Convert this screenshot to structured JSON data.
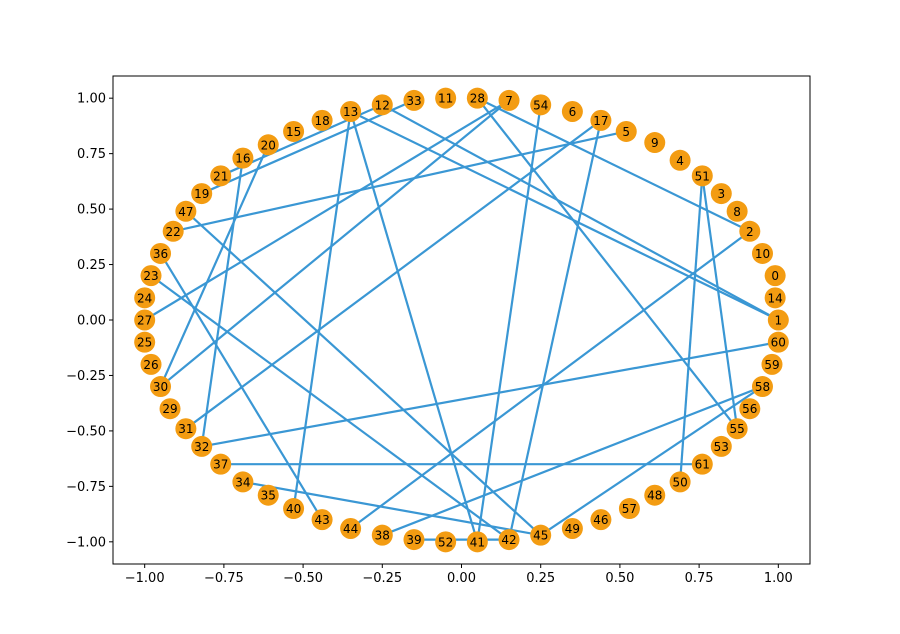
{
  "chart_data": {
    "type": "network",
    "xlim": [
      -1.1,
      1.1
    ],
    "ylim": [
      -1.1,
      1.1
    ],
    "x_ticks": [
      "−1.00",
      "−0.75",
      "−0.50",
      "−0.25",
      "0.00",
      "0.25",
      "0.50",
      "0.75",
      "1.00"
    ],
    "y_ticks": [
      "1.00",
      "0.75",
      "0.50",
      "0.25",
      "0.00",
      "−0.25",
      "−0.50",
      "−0.75",
      "−1.00"
    ],
    "grid": false,
    "node_color": "#f39c12",
    "edge_color": "#3a97d4",
    "nodes": [
      {
        "id": "0",
        "x": 0.99,
        "y": 0.2
      },
      {
        "id": "1",
        "x": 1.0,
        "y": 0.0
      },
      {
        "id": "2",
        "x": 0.91,
        "y": 0.4
      },
      {
        "id": "3",
        "x": 0.82,
        "y": 0.57
      },
      {
        "id": "4",
        "x": 0.69,
        "y": 0.72
      },
      {
        "id": "5",
        "x": 0.52,
        "y": 0.85
      },
      {
        "id": "6",
        "x": 0.35,
        "y": 0.94
      },
      {
        "id": "7",
        "x": 0.15,
        "y": 0.99
      },
      {
        "id": "8",
        "x": 0.87,
        "y": 0.49
      },
      {
        "id": "9",
        "x": 0.61,
        "y": 0.8
      },
      {
        "id": "10",
        "x": 0.95,
        "y": 0.3
      },
      {
        "id": "11",
        "x": -0.05,
        "y": 1.0
      },
      {
        "id": "12",
        "x": -0.25,
        "y": 0.97
      },
      {
        "id": "13",
        "x": -0.35,
        "y": 0.94
      },
      {
        "id": "14",
        "x": 0.99,
        "y": 0.1
      },
      {
        "id": "15",
        "x": -0.53,
        "y": 0.85
      },
      {
        "id": "16",
        "x": -0.69,
        "y": 0.73
      },
      {
        "id": "17",
        "x": 0.44,
        "y": 0.9
      },
      {
        "id": "18",
        "x": -0.44,
        "y": 0.9
      },
      {
        "id": "19",
        "x": -0.82,
        "y": 0.57
      },
      {
        "id": "20",
        "x": -0.61,
        "y": 0.79
      },
      {
        "id": "21",
        "x": -0.76,
        "y": 0.65
      },
      {
        "id": "22",
        "x": -0.91,
        "y": 0.4
      },
      {
        "id": "23",
        "x": -0.98,
        "y": 0.2
      },
      {
        "id": "24",
        "x": -1.0,
        "y": 0.1
      },
      {
        "id": "25",
        "x": -1.0,
        "y": -0.1
      },
      {
        "id": "26",
        "x": -0.98,
        "y": -0.2
      },
      {
        "id": "27",
        "x": -1.0,
        "y": 0.0
      },
      {
        "id": "28",
        "x": 0.05,
        "y": 1.0
      },
      {
        "id": "29",
        "x": -0.92,
        "y": -0.4
      },
      {
        "id": "30",
        "x": -0.95,
        "y": -0.3
      },
      {
        "id": "31",
        "x": -0.87,
        "y": -0.49
      },
      {
        "id": "32",
        "x": -0.82,
        "y": -0.57
      },
      {
        "id": "33",
        "x": -0.15,
        "y": 0.99
      },
      {
        "id": "34",
        "x": -0.69,
        "y": -0.73
      },
      {
        "id": "35",
        "x": -0.61,
        "y": -0.79
      },
      {
        "id": "36",
        "x": -0.95,
        "y": 0.3
      },
      {
        "id": "37",
        "x": -0.76,
        "y": -0.65
      },
      {
        "id": "38",
        "x": -0.25,
        "y": -0.97
      },
      {
        "id": "39",
        "x": -0.15,
        "y": -0.99
      },
      {
        "id": "40",
        "x": -0.53,
        "y": -0.85
      },
      {
        "id": "41",
        "x": 0.05,
        "y": -1.0
      },
      {
        "id": "42",
        "x": 0.15,
        "y": -0.99
      },
      {
        "id": "43",
        "x": -0.44,
        "y": -0.9
      },
      {
        "id": "44",
        "x": -0.35,
        "y": -0.94
      },
      {
        "id": "45",
        "x": 0.25,
        "y": -0.97
      },
      {
        "id": "46",
        "x": 0.44,
        "y": -0.9
      },
      {
        "id": "47",
        "x": -0.87,
        "y": 0.49
      },
      {
        "id": "48",
        "x": 0.61,
        "y": -0.79
      },
      {
        "id": "49",
        "x": 0.35,
        "y": -0.94
      },
      {
        "id": "50",
        "x": 0.69,
        "y": -0.73
      },
      {
        "id": "51",
        "x": 0.76,
        "y": 0.65
      },
      {
        "id": "52",
        "x": -0.05,
        "y": -1.0
      },
      {
        "id": "53",
        "x": 0.82,
        "y": -0.57
      },
      {
        "id": "54",
        "x": 0.25,
        "y": 0.97
      },
      {
        "id": "55",
        "x": 0.87,
        "y": -0.49
      },
      {
        "id": "56",
        "x": 0.91,
        "y": -0.4
      },
      {
        "id": "57",
        "x": 0.53,
        "y": -0.85
      },
      {
        "id": "58",
        "x": 0.95,
        "y": -0.3
      },
      {
        "id": "59",
        "x": 0.98,
        "y": -0.2
      },
      {
        "id": "60",
        "x": 1.0,
        "y": -0.1
      },
      {
        "id": "61",
        "x": 0.76,
        "y": -0.65
      }
    ],
    "edges": [
      [
        "13",
        "1"
      ],
      [
        "13",
        "41"
      ],
      [
        "13",
        "40"
      ],
      [
        "12",
        "1"
      ],
      [
        "7",
        "30"
      ],
      [
        "7",
        "27"
      ],
      [
        "28",
        "2"
      ],
      [
        "28",
        "55"
      ],
      [
        "54",
        "41"
      ],
      [
        "5",
        "22"
      ],
      [
        "17",
        "31"
      ],
      [
        "17",
        "42"
      ],
      [
        "51",
        "50"
      ],
      [
        "51",
        "55"
      ],
      [
        "16",
        "32"
      ],
      [
        "47",
        "45"
      ],
      [
        "36",
        "43"
      ],
      [
        "23",
        "42"
      ],
      [
        "32",
        "60"
      ],
      [
        "37",
        "61"
      ],
      [
        "34",
        "45"
      ],
      [
        "38",
        "58"
      ],
      [
        "39",
        "42"
      ],
      [
        "44",
        "2"
      ],
      [
        "45",
        "58"
      ],
      [
        "19",
        "33"
      ],
      [
        "20",
        "30"
      ],
      [
        "21",
        "12"
      ]
    ]
  }
}
